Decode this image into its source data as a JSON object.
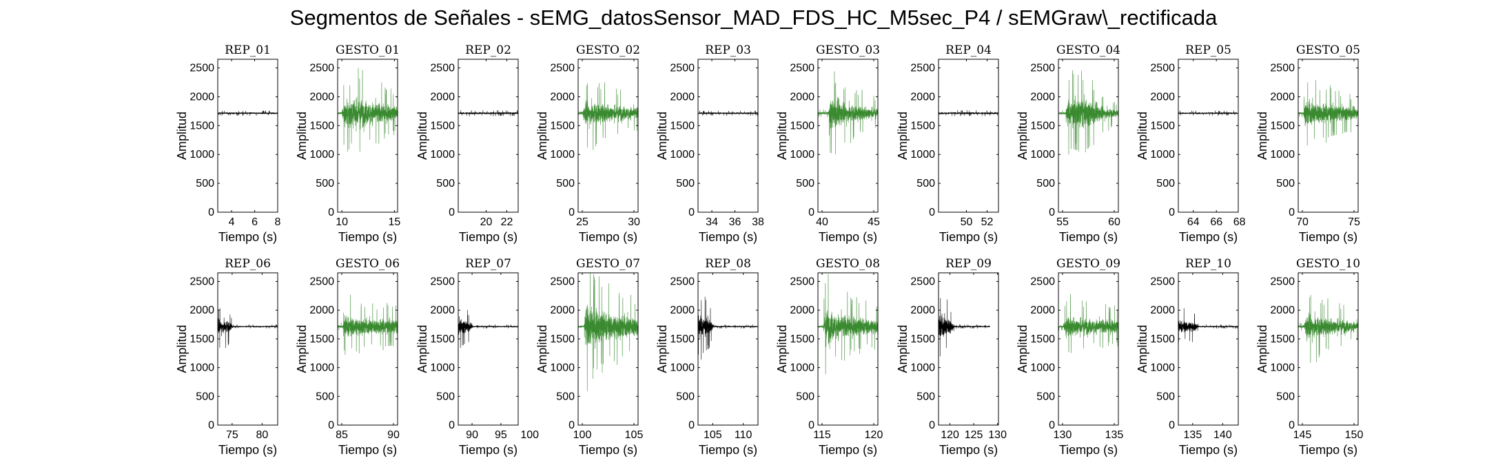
{
  "title": "Segmentos de Señales - sEMG_datosSensor_MAD_FDS_HC_M5sec_P4 / sEMGraw\\_rectificada",
  "colors": {
    "rep": "#000000",
    "gesto": "#3a8a30",
    "axis": "#000000"
  },
  "chart_data": [
    {
      "type": "line",
      "title": "REP_01",
      "xlabel": "Tiempo (s)",
      "ylabel": "Amplitud",
      "xlim": [
        2.8,
        8
      ],
      "xticks": [
        4,
        6,
        8
      ],
      "ylim": [
        0,
        2650
      ],
      "yticks": [
        0,
        500,
        1000,
        1500,
        2000,
        2500
      ],
      "series": [
        {
          "kind": "rep",
          "x_range": [
            2.8,
            8
          ],
          "baseline": 1715,
          "envelope": [
            [
              2.8,
              25
            ],
            [
              8,
              25
            ]
          ]
        }
      ]
    },
    {
      "type": "line",
      "title": "GESTO_01",
      "xlabel": "Tiempo (s)",
      "ylabel": "Amplitud",
      "xlim": [
        9.6,
        15.3
      ],
      "xticks": [
        10,
        15
      ],
      "ylim": [
        0,
        2650
      ],
      "yticks": [
        0,
        500,
        1000,
        1500,
        2000,
        2500
      ],
      "series": [
        {
          "kind": "gesto",
          "x_range": [
            9.6,
            15.3
          ],
          "baseline": 1715,
          "envelope": [
            [
              9.6,
              40
            ],
            [
              10.0,
              40
            ],
            [
              10.2,
              350
            ],
            [
              11.5,
              450
            ],
            [
              13,
              350
            ],
            [
              14.5,
              250
            ],
            [
              15.3,
              200
            ]
          ]
        }
      ]
    },
    {
      "type": "line",
      "title": "REP_02",
      "xlabel": "Tiempo (s)",
      "ylabel": "Amplitud",
      "xlim": [
        17.3,
        23.1
      ],
      "xticks": [
        20,
        22
      ],
      "ylim": [
        0,
        2650
      ],
      "yticks": [
        0,
        500,
        1000,
        1500,
        2000,
        2500
      ],
      "series": [
        {
          "kind": "rep",
          "x_range": [
            17.3,
            23.1
          ],
          "baseline": 1715,
          "envelope": [
            [
              17.3,
              30
            ],
            [
              23.1,
              30
            ]
          ]
        }
      ]
    },
    {
      "type": "line",
      "title": "GESTO_02",
      "xlabel": "Tiempo (s)",
      "ylabel": "Amplitud",
      "xlim": [
        24.6,
        30.4
      ],
      "xticks": [
        25,
        30
      ],
      "ylim": [
        0,
        2650
      ],
      "yticks": [
        0,
        500,
        1000,
        1500,
        2000,
        2500
      ],
      "series": [
        {
          "kind": "gesto",
          "x_range": [
            24.6,
            30.4
          ],
          "baseline": 1715,
          "envelope": [
            [
              24.6,
              40
            ],
            [
              25.0,
              40
            ],
            [
              25.3,
              400
            ],
            [
              26.5,
              350
            ],
            [
              28,
              250
            ],
            [
              30.4,
              180
            ]
          ]
        }
      ]
    },
    {
      "type": "line",
      "title": "REP_03",
      "xlabel": "Tiempo (s)",
      "ylabel": "Amplitud",
      "xlim": [
        32.8,
        38
      ],
      "xticks": [
        34,
        36,
        38
      ],
      "ylim": [
        0,
        2650
      ],
      "yticks": [
        0,
        500,
        1000,
        1500,
        2000,
        2500
      ],
      "series": [
        {
          "kind": "rep",
          "x_range": [
            32.8,
            38
          ],
          "baseline": 1715,
          "envelope": [
            [
              32.8,
              25
            ],
            [
              38,
              25
            ]
          ]
        }
      ]
    },
    {
      "type": "line",
      "title": "GESTO_03",
      "xlabel": "Tiempo (s)",
      "ylabel": "Amplitud",
      "xlim": [
        39.6,
        45.4
      ],
      "xticks": [
        40,
        45
      ],
      "ylim": [
        0,
        2650
      ],
      "yticks": [
        0,
        500,
        1000,
        1500,
        2000,
        2500
      ],
      "series": [
        {
          "kind": "gesto",
          "x_range": [
            39.6,
            45.4
          ],
          "baseline": 1715,
          "envelope": [
            [
              39.6,
              40
            ],
            [
              40.6,
              40
            ],
            [
              40.8,
              450
            ],
            [
              42,
              350
            ],
            [
              43.5,
              250
            ],
            [
              45.4,
              150
            ]
          ]
        }
      ]
    },
    {
      "type": "line",
      "title": "REP_04",
      "xlabel": "Tiempo (s)",
      "ylabel": "Amplitud",
      "xlim": [
        47.3,
        53.1
      ],
      "xticks": [
        50,
        52
      ],
      "ylim": [
        0,
        2650
      ],
      "yticks": [
        0,
        500,
        1000,
        1500,
        2000,
        2500
      ],
      "series": [
        {
          "kind": "rep",
          "x_range": [
            47.3,
            53.1
          ],
          "baseline": 1715,
          "envelope": [
            [
              47.3,
              30
            ],
            [
              53.1,
              30
            ]
          ]
        }
      ]
    },
    {
      "type": "line",
      "title": "GESTO_04",
      "xlabel": "Tiempo (s)",
      "ylabel": "Amplitud",
      "xlim": [
        54.6,
        60.4
      ],
      "xticks": [
        55,
        60
      ],
      "ylim": [
        0,
        2650
      ],
      "yticks": [
        0,
        500,
        1000,
        1500,
        2000,
        2500
      ],
      "series": [
        {
          "kind": "gesto",
          "x_range": [
            54.6,
            60.4
          ],
          "baseline": 1715,
          "envelope": [
            [
              54.6,
              40
            ],
            [
              55.3,
              40
            ],
            [
              55.5,
              400
            ],
            [
              57,
              450
            ],
            [
              58.5,
              250
            ],
            [
              60.4,
              100
            ]
          ]
        }
      ]
    },
    {
      "type": "line",
      "title": "REP_05",
      "xlabel": "Tiempo (s)",
      "ylabel": "Amplitud",
      "xlim": [
        62.7,
        67.9
      ],
      "xticks": [
        64,
        66,
        68
      ],
      "ylim": [
        0,
        2650
      ],
      "yticks": [
        0,
        500,
        1000,
        1500,
        2000,
        2500
      ],
      "series": [
        {
          "kind": "rep",
          "x_range": [
            62.7,
            67.9
          ],
          "baseline": 1715,
          "envelope": [
            [
              62.7,
              25
            ],
            [
              67.9,
              25
            ]
          ]
        }
      ]
    },
    {
      "type": "line",
      "title": "GESTO_05",
      "xlabel": "Tiempo (s)",
      "ylabel": "Amplitud",
      "xlim": [
        69.6,
        75.4
      ],
      "xticks": [
        70,
        75
      ],
      "ylim": [
        0,
        2650
      ],
      "yticks": [
        0,
        500,
        1000,
        1500,
        2000,
        2500
      ],
      "series": [
        {
          "kind": "gesto",
          "x_range": [
            69.6,
            75.4
          ],
          "baseline": 1715,
          "envelope": [
            [
              69.6,
              40
            ],
            [
              70.1,
              40
            ],
            [
              70.3,
              400
            ],
            [
              72,
              300
            ],
            [
              75.4,
              160
            ]
          ]
        }
      ]
    },
    {
      "type": "line",
      "title": "REP_06",
      "xlabel": "Tiempo (s)",
      "ylabel": "Amplitud",
      "xlim": [
        72.6,
        82.6
      ],
      "xticks": [
        75,
        80
      ],
      "ylim": [
        0,
        2650
      ],
      "yticks": [
        0,
        500,
        1000,
        1500,
        2000,
        2500
      ],
      "series": [
        {
          "kind": "rep",
          "x_range": [
            72.6,
            82.6
          ],
          "baseline": 1715,
          "envelope": [
            [
              72.6,
              250
            ],
            [
              74.5,
              200
            ],
            [
              75.2,
              20
            ],
            [
              82.6,
              20
            ]
          ]
        }
      ]
    },
    {
      "type": "line",
      "title": "GESTO_06",
      "xlabel": "Tiempo (s)",
      "ylabel": "Amplitud",
      "xlim": [
        84.6,
        90.4
      ],
      "xticks": [
        85,
        90
      ],
      "ylim": [
        0,
        2650
      ],
      "yticks": [
        0,
        500,
        1000,
        1500,
        2000,
        2500
      ],
      "series": [
        {
          "kind": "gesto",
          "x_range": [
            84.6,
            90.4
          ],
          "baseline": 1715,
          "envelope": [
            [
              84.6,
              40
            ],
            [
              85.1,
              40
            ],
            [
              85.3,
              350
            ],
            [
              87,
              250
            ],
            [
              90.4,
              220
            ]
          ]
        }
      ]
    },
    {
      "type": "line",
      "title": "REP_07",
      "xlabel": "Tiempo (s)",
      "ylabel": "Amplitud",
      "xlim": [
        87.6,
        98
      ],
      "xticks": [
        90,
        95,
        100
      ],
      "ylim": [
        0,
        2650
      ],
      "yticks": [
        0,
        500,
        1000,
        1500,
        2000,
        2500
      ],
      "series": [
        {
          "kind": "rep",
          "x_range": [
            87.6,
            98
          ],
          "baseline": 1715,
          "envelope": [
            [
              87.6,
              250
            ],
            [
              89.5,
              150
            ],
            [
              90.2,
              20
            ],
            [
              98,
              20
            ]
          ]
        }
      ]
    },
    {
      "type": "line",
      "title": "GESTO_07",
      "xlabel": "Tiempo (s)",
      "ylabel": "Amplitud",
      "xlim": [
        99.6,
        105.4
      ],
      "xticks": [
        100,
        105
      ],
      "ylim": [
        0,
        2650
      ],
      "yticks": [
        0,
        500,
        1000,
        1500,
        2000,
        2500
      ],
      "series": [
        {
          "kind": "gesto",
          "x_range": [
            99.6,
            105.4
          ],
          "baseline": 1715,
          "envelope": [
            [
              99.6,
              40
            ],
            [
              100.2,
              40
            ],
            [
              100.3,
              700
            ],
            [
              101.5,
              500
            ],
            [
              103,
              400
            ],
            [
              105.4,
              300
            ]
          ]
        }
      ]
    },
    {
      "type": "line",
      "title": "REP_08",
      "xlabel": "Tiempo (s)",
      "ylabel": "Amplitud",
      "xlim": [
        102.6,
        112.4
      ],
      "xticks": [
        105,
        110
      ],
      "ylim": [
        0,
        2650
      ],
      "yticks": [
        0,
        500,
        1000,
        1500,
        2000,
        2500
      ],
      "series": [
        {
          "kind": "rep",
          "x_range": [
            102.6,
            112.4
          ],
          "baseline": 1715,
          "envelope": [
            [
              102.6,
              350
            ],
            [
              104.5,
              250
            ],
            [
              105.2,
              20
            ],
            [
              112.4,
              20
            ]
          ]
        }
      ]
    },
    {
      "type": "line",
      "title": "GESTO_08",
      "xlabel": "Tiempo (s)",
      "ylabel": "Amplitud",
      "xlim": [
        114.6,
        120.4
      ],
      "xticks": [
        115,
        120
      ],
      "ylim": [
        0,
        2650
      ],
      "yticks": [
        0,
        500,
        1000,
        1500,
        2000,
        2500
      ],
      "series": [
        {
          "kind": "gesto",
          "x_range": [
            114.6,
            120.4
          ],
          "baseline": 1715,
          "envelope": [
            [
              114.6,
              40
            ],
            [
              115.1,
              40
            ],
            [
              115.3,
              550
            ],
            [
              116.5,
              400
            ],
            [
              118,
              300
            ],
            [
              120.4,
              220
            ]
          ]
        }
      ]
    },
    {
      "type": "line",
      "title": "REP_09",
      "xlabel": "Tiempo (s)",
      "ylabel": "Amplitud",
      "xlim": [
        117.6,
        130.2
      ],
      "xticks": [
        120,
        125,
        130
      ],
      "ylim": [
        0,
        2650
      ],
      "yticks": [
        0,
        500,
        1000,
        1500,
        2000,
        2500
      ],
      "series": [
        {
          "kind": "rep",
          "x_range": [
            117.6,
            128.4
          ],
          "baseline": 1715,
          "envelope": [
            [
              117.6,
              380
            ],
            [
              120,
              250
            ],
            [
              121,
              20
            ],
            [
              128.4,
              20
            ]
          ]
        }
      ]
    },
    {
      "type": "line",
      "title": "GESTO_09",
      "xlabel": "Tiempo (s)",
      "ylabel": "Amplitud",
      "xlim": [
        129.6,
        135.4
      ],
      "xticks": [
        130,
        135
      ],
      "ylim": [
        0,
        2650
      ],
      "yticks": [
        0,
        500,
        1000,
        1500,
        2000,
        2500
      ],
      "series": [
        {
          "kind": "gesto",
          "x_range": [
            129.6,
            135.4
          ],
          "baseline": 1715,
          "envelope": [
            [
              129.6,
              40
            ],
            [
              130.1,
              40
            ],
            [
              130.3,
              350
            ],
            [
              132,
              250
            ],
            [
              135.4,
              200
            ]
          ]
        }
      ]
    },
    {
      "type": "line",
      "title": "REP_10",
      "xlabel": "Tiempo (s)",
      "ylabel": "Amplitud",
      "xlim": [
        132.6,
        142.6
      ],
      "xticks": [
        135,
        140
      ],
      "ylim": [
        0,
        2650
      ],
      "yticks": [
        0,
        500,
        1000,
        1500,
        2000,
        2500
      ],
      "series": [
        {
          "kind": "rep",
          "x_range": [
            132.6,
            142.6
          ],
          "baseline": 1715,
          "envelope": [
            [
              132.6,
              200
            ],
            [
              135.3,
              150
            ],
            [
              136,
              20
            ],
            [
              142.6,
              20
            ]
          ]
        }
      ]
    },
    {
      "type": "line",
      "title": "GESTO_10",
      "xlabel": "Tiempo (s)",
      "ylabel": "Amplitud",
      "xlim": [
        144.6,
        150.4
      ],
      "xticks": [
        145,
        150
      ],
      "ylim": [
        0,
        2650
      ],
      "yticks": [
        0,
        500,
        1000,
        1500,
        2000,
        2500
      ],
      "series": [
        {
          "kind": "gesto",
          "x_range": [
            144.6,
            150.4
          ],
          "baseline": 1715,
          "envelope": [
            [
              144.6,
              40
            ],
            [
              145.2,
              40
            ],
            [
              145.4,
              450
            ],
            [
              147,
              300
            ],
            [
              150.4,
              150
            ]
          ]
        }
      ]
    }
  ]
}
